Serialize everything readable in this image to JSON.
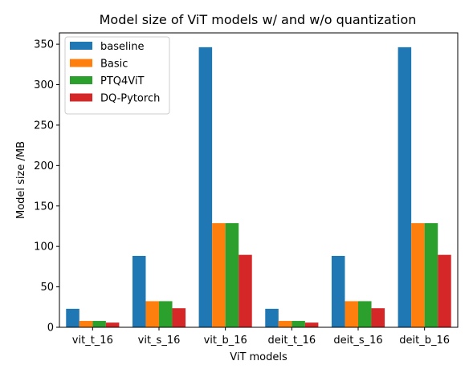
{
  "chart_data": {
    "type": "bar",
    "title": "Model size of ViT models w/ and w/o quantization",
    "xlabel": "ViT models",
    "ylabel": "Model size /MB",
    "categories": [
      "vit_t_16",
      "vit_s_16",
      "vit_b_16",
      "deit_t_16",
      "deit_s_16",
      "deit_b_16"
    ],
    "ylim": [
      0,
      364
    ],
    "yticks": [
      0,
      50,
      100,
      150,
      200,
      250,
      300,
      350
    ],
    "grid": false,
    "legend_position": "top-left",
    "series": [
      {
        "name": "baseline",
        "color": "#1f77b4",
        "values": [
          22.9,
          88.3,
          346.3,
          22.9,
          88.3,
          346.3
        ]
      },
      {
        "name": "Basic",
        "color": "#ff7f0e",
        "values": [
          7.9,
          32.3,
          128.8,
          7.9,
          32.3,
          128.8
        ]
      },
      {
        "name": "PTQ4ViT",
        "color": "#2ca02c",
        "values": [
          7.9,
          32.3,
          128.8,
          7.9,
          32.3,
          128.8
        ]
      },
      {
        "name": "DQ-Pytorch",
        "color": "#d62728",
        "values": [
          5.8,
          23.6,
          89.6,
          5.8,
          23.6,
          89.6
        ]
      }
    ]
  }
}
